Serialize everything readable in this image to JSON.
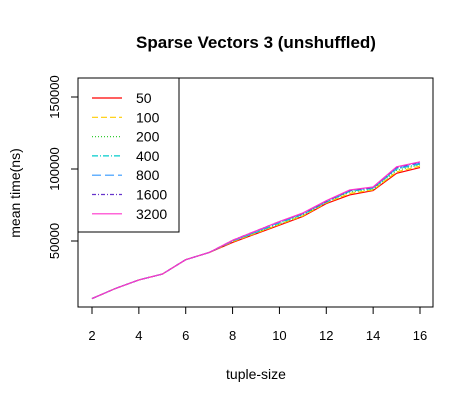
{
  "chart_data": {
    "type": "line",
    "title": "Sparse Vectors 3 (unshuffled)",
    "xlabel": "tuple-size",
    "ylabel": "mean time(ns)",
    "xlim": [
      2,
      16
    ],
    "ylim": [
      0,
      160000
    ],
    "x_ticks": [
      2,
      4,
      6,
      8,
      10,
      12,
      14,
      16
    ],
    "y_ticks": [
      50000,
      100000,
      150000
    ],
    "x": [
      2,
      3,
      4,
      5,
      6,
      7,
      8,
      9,
      10,
      11,
      12,
      13,
      14,
      15,
      16
    ],
    "legend_position": "top-left",
    "grid": false,
    "series": [
      {
        "name": "50",
        "color": "#ff0000",
        "dash": "",
        "values": [
          10000,
          17000,
          23000,
          27000,
          37000,
          42000,
          49000,
          55000,
          61000,
          67000,
          76000,
          82000,
          85000,
          97000,
          101000
        ]
      },
      {
        "name": "100",
        "color": "#ffcc00",
        "dash": "6,3",
        "values": [
          10000,
          17000,
          23000,
          27000,
          37000,
          42000,
          49500,
          55500,
          61500,
          67500,
          76500,
          83000,
          85500,
          98000,
          102000
        ]
      },
      {
        "name": "200",
        "color": "#33cc33",
        "dash": "1,2",
        "values": [
          10000,
          17000,
          23000,
          27000,
          37000,
          42000,
          50000,
          56000,
          62000,
          68000,
          77000,
          84000,
          86000,
          99000,
          103000
        ]
      },
      {
        "name": "400",
        "color": "#00cccc",
        "dash": "6,2,1,2",
        "values": [
          10000,
          17000,
          23000,
          27000,
          37000,
          42000,
          50000,
          56000,
          62500,
          68500,
          77000,
          84500,
          86500,
          100000,
          103500
        ]
      },
      {
        "name": "800",
        "color": "#3399ff",
        "dash": "9,4",
        "values": [
          10000,
          17000,
          23000,
          27000,
          37000,
          42000,
          50000,
          56500,
          63000,
          69000,
          77500,
          85000,
          87000,
          100500,
          104000
        ]
      },
      {
        "name": "1600",
        "color": "#6633cc",
        "dash": "4,2,1,2",
        "values": [
          10000,
          17000,
          23000,
          27000,
          37000,
          42000,
          50500,
          57000,
          63500,
          69000,
          77500,
          85000,
          87000,
          101000,
          104500
        ]
      },
      {
        "name": "3200",
        "color": "#ff33cc",
        "dash": "",
        "values": [
          10000,
          17000,
          23000,
          27000,
          37000,
          42000,
          50500,
          57000,
          63500,
          69500,
          78000,
          85500,
          87500,
          101500,
          105000
        ]
      }
    ]
  }
}
